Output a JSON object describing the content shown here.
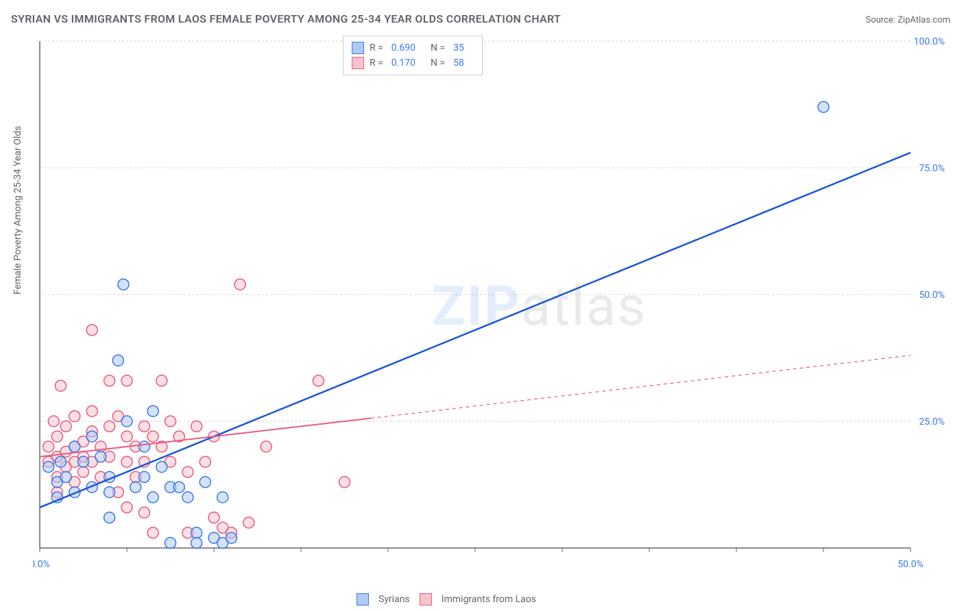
{
  "title": "SYRIAN VS IMMIGRANTS FROM LAOS FEMALE POVERTY AMONG 25-34 YEAR OLDS CORRELATION CHART",
  "source_label": "Source: ZipAtlas.com",
  "y_axis_label": "Female Poverty Among 25-34 Year Olds",
  "watermark": {
    "bold": "ZIP",
    "rest": "atlas"
  },
  "stats_legend": {
    "series": [
      {
        "swatch_fill": "#aecbf5",
        "swatch_border": "#3b78e7",
        "r_label": "R =",
        "r_value": "0.690",
        "n_label": "N =",
        "n_value": "35"
      },
      {
        "swatch_fill": "#f7c4ce",
        "swatch_border": "#e75a7c",
        "r_label": "R =",
        "r_value": "0.170",
        "n_label": "N =",
        "n_value": "58"
      }
    ]
  },
  "bottom_legend": {
    "items": [
      {
        "swatch_fill": "#aecbf5",
        "swatch_border": "#3b78e7",
        "label": "Syrians"
      },
      {
        "swatch_fill": "#f7c4ce",
        "swatch_border": "#e75a7c",
        "label": "Immigrants from Laos"
      }
    ]
  },
  "chart": {
    "type": "scatter",
    "xlim": [
      0,
      50
    ],
    "ylim": [
      0,
      100
    ],
    "x_ticks": [
      0,
      5,
      10,
      15,
      20,
      25,
      30,
      35,
      40,
      45,
      50
    ],
    "x_tick_labels": {
      "0": "0.0%",
      "50": "50.0%"
    },
    "y_ticks": [
      25,
      50,
      75,
      100
    ],
    "y_tick_labels": {
      "25": "25.0%",
      "50": "50.0%",
      "75": "75.0%",
      "100": "100.0%"
    },
    "background_color": "#ffffff",
    "grid_color": "#d0d0d0",
    "axis_color": "#666666",
    "point_radius": 8,
    "series": [
      {
        "name": "Syrians",
        "fill": "#aecbf5",
        "stroke": "#3b78e7",
        "fill_opacity": 0.55,
        "trend": {
          "x1": 0,
          "y1": 8,
          "x2": 50,
          "y2": 78,
          "stroke": "#1a56db",
          "width": 2.5,
          "solid_until_x": 50
        },
        "points": [
          [
            0.5,
            16
          ],
          [
            1,
            13
          ],
          [
            1.2,
            17
          ],
          [
            1,
            10
          ],
          [
            1.5,
            14
          ],
          [
            2,
            11
          ],
          [
            2,
            20
          ],
          [
            2.5,
            17
          ],
          [
            3,
            12
          ],
          [
            3,
            22
          ],
          [
            3.5,
            18
          ],
          [
            4,
            11
          ],
          [
            4,
            14
          ],
          [
            4.5,
            37
          ],
          [
            4.8,
            52
          ],
          [
            5,
            25
          ],
          [
            5.5,
            12
          ],
          [
            6,
            20
          ],
          [
            6,
            14
          ],
          [
            6.5,
            10
          ],
          [
            6.5,
            27
          ],
          [
            7,
            16
          ],
          [
            7.5,
            12
          ],
          [
            7.5,
            1
          ],
          [
            8,
            12
          ],
          [
            8.5,
            10
          ],
          [
            9,
            3
          ],
          [
            9,
            1
          ],
          [
            9.5,
            13
          ],
          [
            10,
            2
          ],
          [
            10.5,
            1
          ],
          [
            10.5,
            10
          ],
          [
            11,
            2
          ],
          [
            45,
            87
          ],
          [
            4,
            6
          ]
        ]
      },
      {
        "name": "Immigrants from Laos",
        "fill": "#f7c4ce",
        "stroke": "#e75a7c",
        "fill_opacity": 0.55,
        "trend": {
          "x1": 0,
          "y1": 18,
          "x2": 50,
          "y2": 38,
          "stroke": "#e75a7c",
          "width": 2,
          "solid_until_x": 19
        },
        "points": [
          [
            0.5,
            17
          ],
          [
            0.5,
            20
          ],
          [
            1,
            18
          ],
          [
            1,
            14
          ],
          [
            1,
            22
          ],
          [
            1.2,
            32
          ],
          [
            1.5,
            19
          ],
          [
            1.5,
            16
          ],
          [
            1.5,
            24
          ],
          [
            2,
            20
          ],
          [
            2,
            17
          ],
          [
            2,
            13
          ],
          [
            2,
            26
          ],
          [
            2.5,
            18
          ],
          [
            2.5,
            21
          ],
          [
            2.5,
            15
          ],
          [
            3,
            23
          ],
          [
            3,
            17
          ],
          [
            3,
            43
          ],
          [
            3,
            27
          ],
          [
            3.5,
            20
          ],
          [
            3.5,
            14
          ],
          [
            4,
            24
          ],
          [
            4,
            18
          ],
          [
            4,
            33
          ],
          [
            4.5,
            26
          ],
          [
            4.5,
            11
          ],
          [
            5,
            22
          ],
          [
            5,
            17
          ],
          [
            5,
            8
          ],
          [
            5,
            33
          ],
          [
            5.5,
            20
          ],
          [
            5.5,
            14
          ],
          [
            6,
            24
          ],
          [
            6,
            17
          ],
          [
            6,
            7
          ],
          [
            6.5,
            22
          ],
          [
            6.5,
            3
          ],
          [
            7,
            20
          ],
          [
            7,
            33
          ],
          [
            7.5,
            17
          ],
          [
            7.5,
            25
          ],
          [
            8,
            22
          ],
          [
            8.5,
            15
          ],
          [
            8.5,
            3
          ],
          [
            9,
            24
          ],
          [
            9.5,
            17
          ],
          [
            10,
            22
          ],
          [
            10,
            6
          ],
          [
            10.5,
            4
          ],
          [
            11,
            3
          ],
          [
            11.5,
            52
          ],
          [
            12,
            5
          ],
          [
            13,
            20
          ],
          [
            16,
            33
          ],
          [
            17.5,
            13
          ],
          [
            1,
            11
          ],
          [
            0.8,
            25
          ]
        ]
      }
    ]
  }
}
